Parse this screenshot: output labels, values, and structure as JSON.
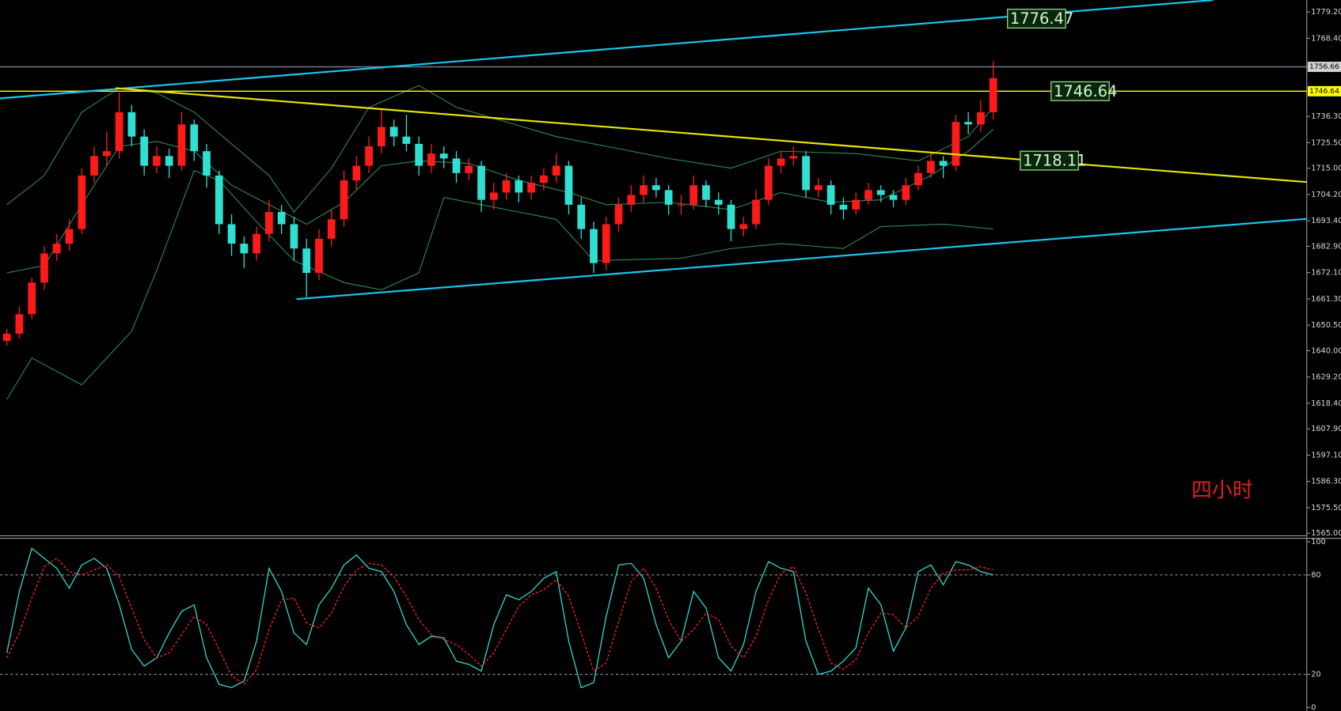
{
  "chart_data": [
    {
      "type": "candlestick",
      "ylim": [
        1564.3,
        1784.1
      ],
      "yticks": [
        {
          "value": 1779.2,
          "label": "1779.20"
        },
        {
          "value": 1768.4,
          "label": "1768.40"
        },
        {
          "value": 1736.3,
          "label": "1736.30"
        },
        {
          "value": 1725.5,
          "label": "1725.50"
        },
        {
          "value": 1715.0,
          "label": "1715.00"
        },
        {
          "value": 1704.2,
          "label": "1704.20"
        },
        {
          "value": 1693.4,
          "label": "1693.40"
        },
        {
          "value": 1682.9,
          "label": "1682.90"
        },
        {
          "value": 1672.1,
          "label": "1672.10"
        },
        {
          "value": 1661.3,
          "label": "1661.30"
        },
        {
          "value": 1650.5,
          "label": "1650.50"
        },
        {
          "value": 1640.0,
          "label": "1640.00"
        },
        {
          "value": 1629.2,
          "label": "1629.20"
        },
        {
          "value": 1618.4,
          "label": "1618.40"
        },
        {
          "value": 1607.9,
          "label": "1607.90"
        },
        {
          "value": 1597.1,
          "label": "1597.10"
        },
        {
          "value": 1586.3,
          "label": "1586.30"
        },
        {
          "value": 1575.5,
          "label": "1575.50"
        },
        {
          "value": 1565.0,
          "label": "1565.00"
        }
      ],
      "up_color": "#ff1a1a",
      "down_color": "#2fe0d2",
      "open": [
        1644,
        1647,
        1655,
        1668,
        1680,
        1684,
        1690,
        1712,
        1720,
        1722,
        1738,
        1728,
        1716,
        1720,
        1716,
        1733,
        1722,
        1712,
        1692,
        1684,
        1680,
        1688,
        1697,
        1692,
        1682,
        1672,
        1686,
        1694,
        1710,
        1716,
        1724,
        1732,
        1728,
        1725,
        1716,
        1721,
        1719,
        1713,
        1716,
        1702,
        1705,
        1710,
        1705,
        1709,
        1712,
        1716,
        1700,
        1690,
        1676,
        1692,
        1700,
        1704,
        1708,
        1706,
        1700,
        1700,
        1708,
        1702,
        1700,
        1690,
        1692,
        1702,
        1716,
        1719,
        1720,
        1706,
        1708,
        1700,
        1698,
        1702,
        1706,
        1704,
        1702,
        1708,
        1713,
        1718,
        1716,
        1734,
        1733,
        1738
      ],
      "high": [
        1649,
        1658,
        1670,
        1683,
        1688,
        1694,
        1715,
        1724,
        1730,
        1746,
        1741,
        1731,
        1724,
        1723,
        1738,
        1735,
        1725,
        1714,
        1696,
        1687,
        1691,
        1702,
        1700,
        1695,
        1686,
        1690,
        1698,
        1714,
        1720,
        1728,
        1739,
        1735,
        1737,
        1728,
        1725,
        1724,
        1722,
        1719,
        1718,
        1709,
        1713,
        1712,
        1712,
        1715,
        1721,
        1718,
        1703,
        1693,
        1695,
        1703,
        1708,
        1712,
        1711,
        1708,
        1704,
        1712,
        1710,
        1705,
        1702,
        1695,
        1706,
        1719,
        1722,
        1724,
        1722,
        1711,
        1710,
        1703,
        1705,
        1709,
        1708,
        1706,
        1711,
        1716,
        1721,
        1720,
        1737,
        1738,
        1743,
        1759
      ],
      "low": [
        1642,
        1645,
        1653,
        1665,
        1677,
        1681,
        1688,
        1709,
        1716,
        1719,
        1724,
        1712,
        1713,
        1711,
        1714,
        1718,
        1707,
        1688,
        1679,
        1674,
        1677,
        1685,
        1688,
        1677,
        1662,
        1669,
        1683,
        1691,
        1706,
        1713,
        1721,
        1724,
        1722,
        1712,
        1713,
        1715,
        1709,
        1710,
        1697,
        1698,
        1702,
        1701,
        1702,
        1706,
        1709,
        1696,
        1686,
        1672,
        1673,
        1689,
        1697,
        1701,
        1703,
        1696,
        1696,
        1698,
        1699,
        1696,
        1685,
        1687,
        1690,
        1700,
        1713,
        1716,
        1703,
        1703,
        1696,
        1694,
        1696,
        1700,
        1701,
        1699,
        1700,
        1706,
        1711,
        1711,
        1714,
        1729,
        1730,
        1735
      ],
      "close": [
        1647,
        1655,
        1668,
        1680,
        1684,
        1690,
        1712,
        1720,
        1722,
        1738,
        1728,
        1716,
        1720,
        1716,
        1733,
        1722,
        1712,
        1692,
        1684,
        1680,
        1688,
        1697,
        1692,
        1682,
        1672,
        1686,
        1694,
        1710,
        1716,
        1724,
        1732,
        1728,
        1725,
        1716,
        1721,
        1719,
        1713,
        1716,
        1702,
        1705,
        1710,
        1705,
        1709,
        1712,
        1716,
        1700,
        1690,
        1676,
        1692,
        1700,
        1704,
        1708,
        1706,
        1700,
        1700,
        1708,
        1702,
        1700,
        1690,
        1692,
        1702,
        1716,
        1719,
        1720,
        1706,
        1708,
        1700,
        1698,
        1702,
        1706,
        1704,
        1702,
        1708,
        1713,
        1718,
        1716,
        1734,
        1733,
        1738,
        1752
      ],
      "bands": [
        {
          "color": "#2e8b57",
          "x": [
            0,
            3,
            6,
            9,
            12,
            15,
            18,
            21,
            23,
            26,
            29,
            33,
            36,
            40,
            44,
            48,
            53,
            58,
            62,
            68,
            73,
            77,
            79
          ],
          "values": [
            1700,
            1712,
            1738,
            1748,
            1746,
            1738,
            1725,
            1712,
            1697,
            1715,
            1740,
            1749,
            1740,
            1734,
            1728,
            1724,
            1719,
            1715,
            1722,
            1721,
            1718,
            1728,
            1740
          ]
        },
        {
          "color": "#2e8b57",
          "x": [
            0,
            3,
            6,
            9,
            12,
            15,
            18,
            21,
            24,
            27,
            30,
            33,
            37,
            41,
            45,
            48,
            53,
            58,
            62,
            66,
            70,
            74,
            77,
            79
          ],
          "values": [
            1672,
            1675,
            1700,
            1724,
            1726,
            1722,
            1708,
            1700,
            1692,
            1701,
            1716,
            1718,
            1717,
            1710,
            1705,
            1700,
            1701,
            1698,
            1705,
            1701,
            1702,
            1712,
            1722,
            1731
          ]
        },
        {
          "color": "#2e8b57",
          "x": [
            0,
            2,
            6,
            10,
            12,
            15,
            17,
            20,
            23,
            27,
            30,
            33,
            35,
            40,
            44,
            47,
            54,
            58,
            62,
            67,
            70,
            75,
            79
          ],
          "values": [
            1620,
            1637,
            1626,
            1648,
            1673,
            1714,
            1710,
            1693,
            1677,
            1668,
            1665,
            1672,
            1703,
            1698,
            1694,
            1677,
            1678,
            1682,
            1684,
            1682,
            1691,
            1692,
            1690
          ]
        }
      ],
      "trendlines": [
        {
          "color": "#19c8f0",
          "x": [
            -0.55,
            96.6
          ],
          "values": [
            1743.7,
            1784.1
          ]
        },
        {
          "color": "#19c8f0",
          "x": [
            23.2,
            104.1
          ],
          "values": [
            1661.2,
            1694.2
          ]
        },
        {
          "color": "#e6e600",
          "x": [
            8.7,
            104.1
          ],
          "values": [
            1747.9,
            1709.3
          ]
        }
      ],
      "hlines": [
        {
          "value": 1756.66,
          "color": "#6f7c8c",
          "tag_color": "#d0d0d0"
        },
        {
          "value": 1746.64,
          "color": "#ffff00",
          "tag_color": "#ffff00"
        }
      ],
      "price_labels": [
        1776.47,
        1746.64,
        1718.11
      ],
      "note": "四小时",
      "note_color": "#e02020"
    },
    {
      "type": "line",
      "ylim": [
        0,
        100
      ],
      "yticks": [
        100,
        80,
        20,
        0
      ],
      "levels": [
        80,
        20
      ],
      "series": [
        {
          "color": "#2fd8d0",
          "dashed": false,
          "values": [
            33,
            70,
            96,
            90,
            84,
            72,
            86,
            90,
            84,
            62,
            35,
            25,
            30,
            45,
            58,
            62,
            30,
            14,
            12,
            16,
            40,
            84,
            70,
            45,
            38,
            62,
            72,
            86,
            92,
            84,
            82,
            70,
            50,
            38,
            43,
            42,
            28,
            26,
            22,
            50,
            68,
            65,
            70,
            78,
            82,
            40,
            12,
            15,
            55,
            86,
            87,
            78,
            50,
            30,
            40,
            70,
            60,
            30,
            22,
            38,
            70,
            88,
            84,
            82,
            40,
            20,
            22,
            28,
            36,
            72,
            62,
            34,
            48,
            82,
            86,
            74,
            88,
            86,
            82,
            80
          ]
        },
        {
          "color": "#ff2020",
          "dashed": true,
          "values": [
            30,
            45,
            66,
            85,
            90,
            82,
            80,
            83,
            86,
            79,
            60,
            41,
            30,
            33,
            44,
            55,
            50,
            35,
            19,
            14,
            23,
            47,
            65,
            66,
            51,
            48,
            57,
            73,
            83,
            87,
            86,
            79,
            67,
            53,
            44,
            41,
            38,
            32,
            25,
            33,
            47,
            61,
            68,
            71,
            77,
            67,
            45,
            22,
            27,
            52,
            76,
            84,
            72,
            53,
            40,
            47,
            57,
            53,
            37,
            30,
            43,
            65,
            81,
            85,
            69,
            47,
            27,
            23,
            29,
            45,
            57,
            56,
            48,
            55,
            72,
            81,
            83,
            83,
            85,
            83
          ]
        }
      ]
    }
  ]
}
